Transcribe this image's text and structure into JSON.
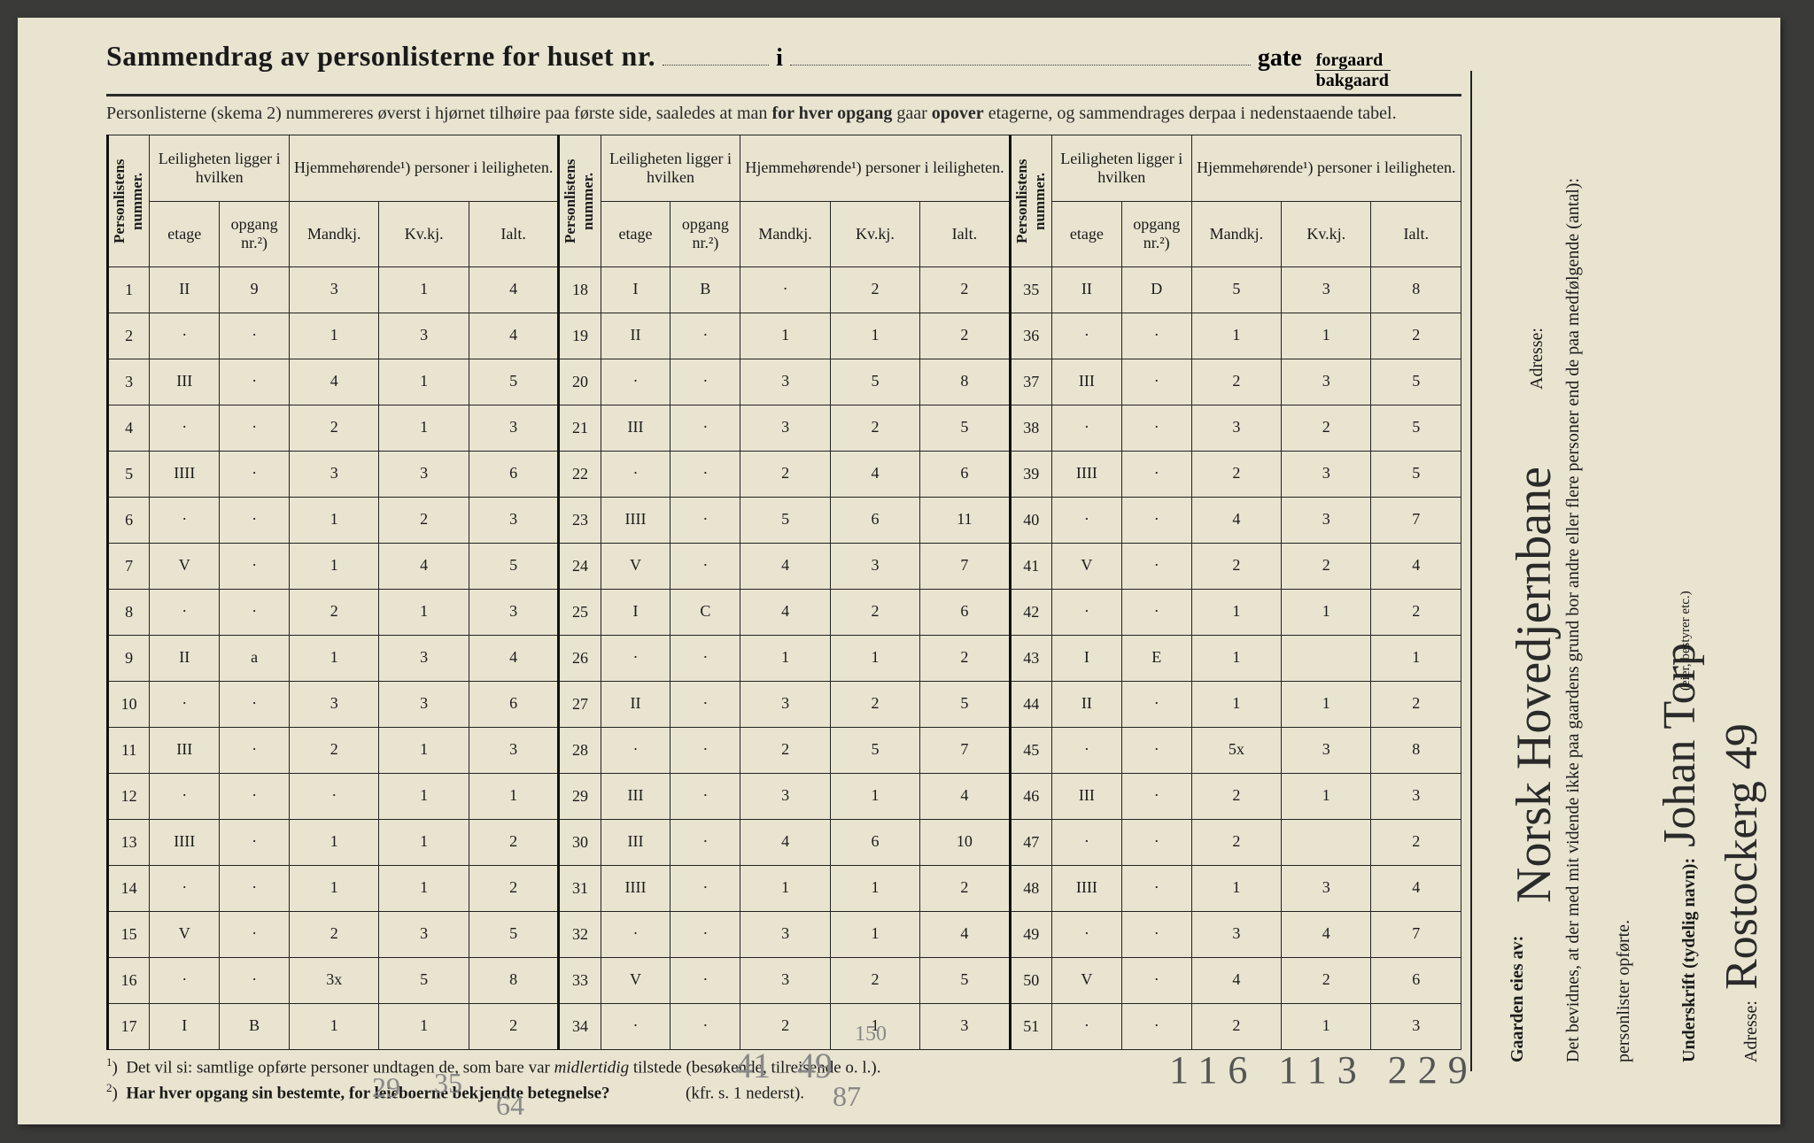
{
  "title": {
    "main": "Sammendrag av personlisterne for huset nr.",
    "i": "i",
    "gate": "gate",
    "forgaard": "forgaard",
    "bakgaard": "bakgaard"
  },
  "subtitle": "Personlisterne (skema 2) nummereres øverst i hjørnet tilhøire paa første side, saaledes at man for hver opgang gaar opover etagerne, og sammendrages derpaa i nedenstaaende tabel.",
  "headers": {
    "personlistens": "Personlistens nummer.",
    "leiligheten": "Leiligheten ligger i hvilken",
    "hjemme": "Hjemmehørende¹) personer i leiligheten.",
    "etage": "etage",
    "opgang": "opgang nr.²)",
    "mandkj": "Mandkj.",
    "kvkj": "Kv.kj.",
    "ialt": "Ialt."
  },
  "rows": [
    {
      "n": "1",
      "et": "II",
      "op": "9",
      "m": "3",
      "k": "1",
      "i": "4"
    },
    {
      "n": "2",
      "et": "·",
      "op": "·",
      "m": "1",
      "k": "3",
      "i": "4"
    },
    {
      "n": "3",
      "et": "III",
      "op": "·",
      "m": "4",
      "k": "1",
      "i": "5"
    },
    {
      "n": "4",
      "et": "·",
      "op": "·",
      "m": "2",
      "k": "1",
      "i": "3"
    },
    {
      "n": "5",
      "et": "IIII",
      "op": "·",
      "m": "3",
      "k": "3",
      "i": "6"
    },
    {
      "n": "6",
      "et": "·",
      "op": "·",
      "m": "1",
      "k": "2",
      "i": "3"
    },
    {
      "n": "7",
      "et": "V",
      "op": "·",
      "m": "1",
      "k": "4",
      "i": "5"
    },
    {
      "n": "8",
      "et": "·",
      "op": "·",
      "m": "2",
      "k": "1",
      "i": "3"
    },
    {
      "n": "9",
      "et": "II",
      "op": "a",
      "m": "1",
      "k": "3",
      "i": "4"
    },
    {
      "n": "10",
      "et": "·",
      "op": "·",
      "m": "3",
      "k": "3",
      "i": "6"
    },
    {
      "n": "11",
      "et": "III",
      "op": "·",
      "m": "2",
      "k": "1",
      "i": "3"
    },
    {
      "n": "12",
      "et": "·",
      "op": "·",
      "m": "·",
      "k": "1",
      "i": "1"
    },
    {
      "n": "13",
      "et": "IIII",
      "op": "·",
      "m": "1",
      "k": "1",
      "i": "2"
    },
    {
      "n": "14",
      "et": "·",
      "op": "·",
      "m": "1",
      "k": "1",
      "i": "2"
    },
    {
      "n": "15",
      "et": "V",
      "op": "·",
      "m": "2",
      "k": "3",
      "i": "5"
    },
    {
      "n": "16",
      "et": "·",
      "op": "·",
      "m": "3x",
      "k": "5",
      "i": "8"
    },
    {
      "n": "17",
      "et": "I",
      "op": "B",
      "m": "1",
      "k": "1",
      "i": "2"
    },
    {
      "n": "18",
      "et": "I",
      "op": "B",
      "m": "·",
      "k": "2",
      "i": "2"
    },
    {
      "n": "19",
      "et": "II",
      "op": "·",
      "m": "1",
      "k": "1",
      "i": "2"
    },
    {
      "n": "20",
      "et": "·",
      "op": "·",
      "m": "3",
      "k": "5",
      "i": "8"
    },
    {
      "n": "21",
      "et": "III",
      "op": "·",
      "m": "3",
      "k": "2",
      "i": "5"
    },
    {
      "n": "22",
      "et": "·",
      "op": "·",
      "m": "2",
      "k": "4",
      "i": "6"
    },
    {
      "n": "23",
      "et": "IIII",
      "op": "·",
      "m": "5",
      "k": "6",
      "i": "11"
    },
    {
      "n": "24",
      "et": "V",
      "op": "·",
      "m": "4",
      "k": "3",
      "i": "7"
    },
    {
      "n": "25",
      "et": "I",
      "op": "C",
      "m": "4",
      "k": "2",
      "i": "6"
    },
    {
      "n": "26",
      "et": "·",
      "op": "·",
      "m": "1",
      "k": "1",
      "i": "2"
    },
    {
      "n": "27",
      "et": "II",
      "op": "·",
      "m": "3",
      "k": "2",
      "i": "5"
    },
    {
      "n": "28",
      "et": "·",
      "op": "·",
      "m": "2",
      "k": "5",
      "i": "7"
    },
    {
      "n": "29",
      "et": "III",
      "op": "·",
      "m": "3",
      "k": "1",
      "i": "4"
    },
    {
      "n": "30",
      "et": "III",
      "op": "·",
      "m": "4",
      "k": "6",
      "i": "10"
    },
    {
      "n": "31",
      "et": "IIII",
      "op": "·",
      "m": "1",
      "k": "1",
      "i": "2"
    },
    {
      "n": "32",
      "et": "·",
      "op": "·",
      "m": "3",
      "k": "1",
      "i": "4"
    },
    {
      "n": "33",
      "et": "V",
      "op": "·",
      "m": "3",
      "k": "2",
      "i": "5"
    },
    {
      "n": "34",
      "et": "·",
      "op": "·",
      "m": "2",
      "k": "1",
      "i": "3"
    },
    {
      "n": "35",
      "et": "II",
      "op": "D",
      "m": "5",
      "k": "3",
      "i": "8"
    },
    {
      "n": "36",
      "et": "·",
      "op": "·",
      "m": "1",
      "k": "1",
      "i": "2"
    },
    {
      "n": "37",
      "et": "III",
      "op": "·",
      "m": "2",
      "k": "3",
      "i": "5"
    },
    {
      "n": "38",
      "et": "·",
      "op": "·",
      "m": "3",
      "k": "2",
      "i": "5"
    },
    {
      "n": "39",
      "et": "IIII",
      "op": "·",
      "m": "2",
      "k": "3",
      "i": "5"
    },
    {
      "n": "40",
      "et": "·",
      "op": "·",
      "m": "4",
      "k": "3",
      "i": "7"
    },
    {
      "n": "41",
      "et": "V",
      "op": "·",
      "m": "2",
      "k": "2",
      "i": "4"
    },
    {
      "n": "42",
      "et": "·",
      "op": "·",
      "m": "1",
      "k": "1",
      "i": "2"
    },
    {
      "n": "43",
      "et": "I",
      "op": "E",
      "m": "1",
      "k": "",
      "i": "1"
    },
    {
      "n": "44",
      "et": "II",
      "op": "·",
      "m": "1",
      "k": "1",
      "i": "2"
    },
    {
      "n": "45",
      "et": "·",
      "op": "·",
      "m": "5x",
      "k": "3",
      "i": "8"
    },
    {
      "n": "46",
      "et": "III",
      "op": "·",
      "m": "2",
      "k": "1",
      "i": "3"
    },
    {
      "n": "47",
      "et": "·",
      "op": "·",
      "m": "2",
      "k": "",
      "i": "2"
    },
    {
      "n": "48",
      "et": "IIII",
      "op": "·",
      "m": "1",
      "k": "3",
      "i": "4"
    },
    {
      "n": "49",
      "et": "·",
      "op": "·",
      "m": "3",
      "k": "4",
      "i": "7"
    },
    {
      "n": "50",
      "et": "V",
      "op": "·",
      "m": "4",
      "k": "2",
      "i": "6"
    },
    {
      "n": "51",
      "et": "·",
      "op": "·",
      "m": "2",
      "k": "1",
      "i": "3"
    }
  ],
  "footnotes": {
    "f1": "¹)  Det vil si: samtlige opførte personer undtagen de, som bare var midlertidig tilstede (besøkende, tilreisende o. l.).",
    "f2": "²)  Har hver opgang sin bestemte, for leieboerne bekjendte betegnelse?",
    "f2_tail": "(kfr. s. 1 nederst)."
  },
  "pencil": {
    "a": "29",
    "b": "35",
    "c": "64",
    "d": "41",
    "e": "49",
    "f": "87",
    "g": "150"
  },
  "totals": {
    "m": "116",
    "k": "113",
    "i": "229"
  },
  "sidebar": {
    "bevidnes": "Det bevidnes, at der med mit vidende ikke paa gaardens grund bor andre eller flere personer end de paa medfølgende (antal):",
    "personlister": "personlister opførte.",
    "underskrift_label": "Underskrift (tydelig navn):",
    "bestyrer": "(eier, bestyrer etc.)",
    "adresse_label": "Adresse:",
    "gaarden_label": "Gaarden eies av:",
    "sign_name": "Johan Torp",
    "sign_addr": "Rostockerg 49",
    "owner": "Norsk Hovedjernbane"
  }
}
